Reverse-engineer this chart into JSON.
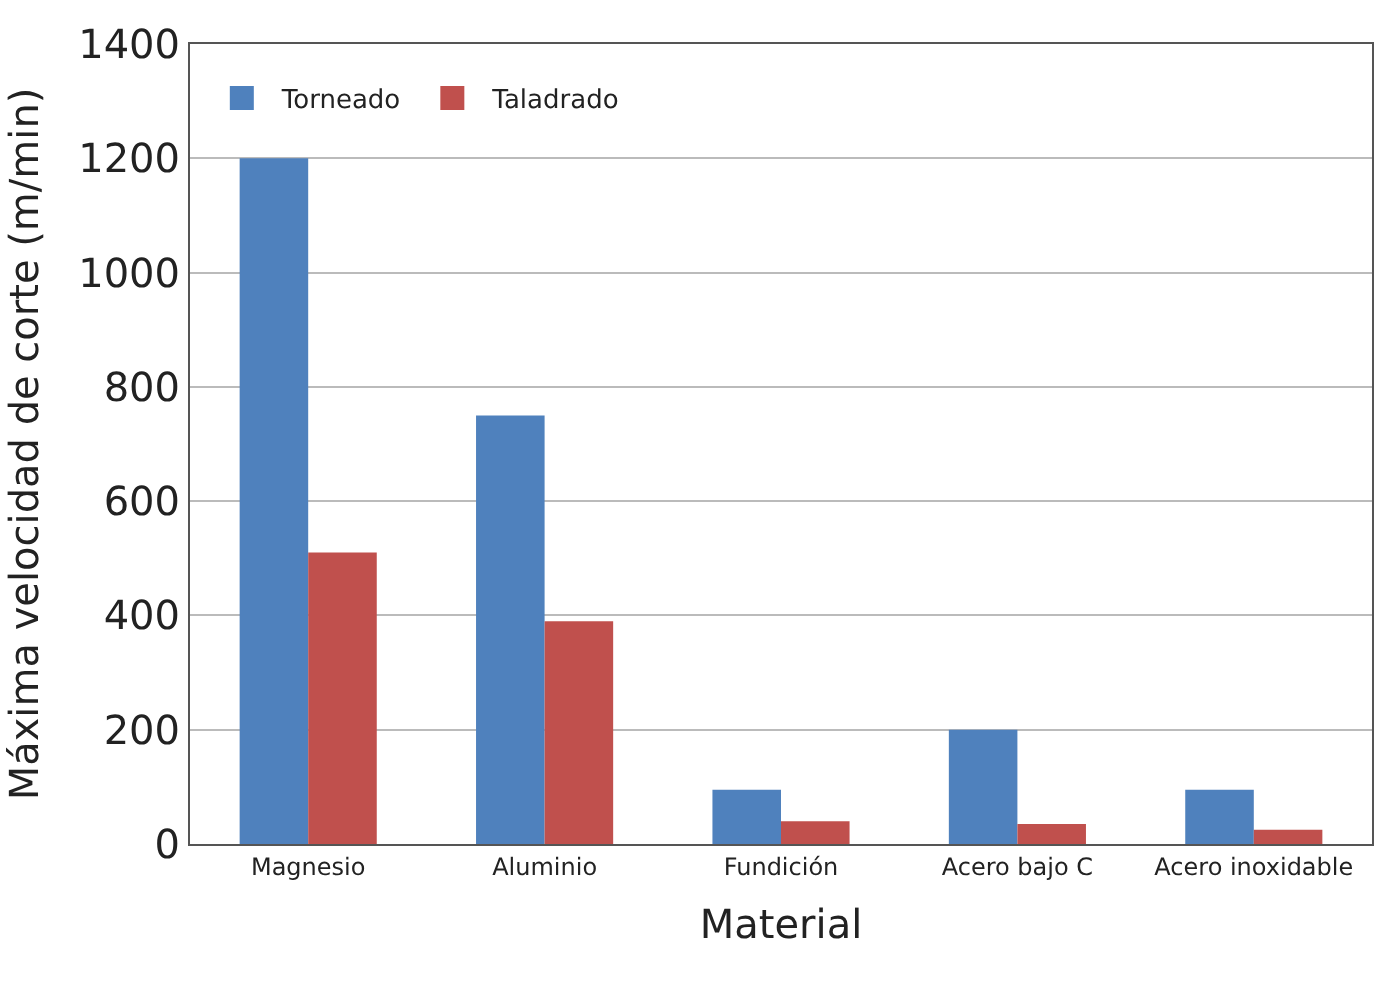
{
  "chart_data": {
    "type": "bar",
    "xlabel": "Material",
    "ylabel": "Máxima velocidad de corte (m/min)",
    "categories": [
      "Magnesio",
      "Aluminio",
      "Fundición",
      "Acero bajo C",
      "Acero inoxidable"
    ],
    "series": [
      {
        "name": "Torneado",
        "color": "#4f81bd",
        "values": [
          1200,
          750,
          95,
          200,
          95
        ]
      },
      {
        "name": "Taladrado",
        "color": "#c0504d",
        "values": [
          510,
          390,
          40,
          35,
          25
        ]
      }
    ],
    "ylim": [
      0,
      1400
    ],
    "yticks": [
      0,
      200,
      400,
      600,
      800,
      1000,
      1200,
      1400
    ],
    "grid": "y",
    "legend": "top left"
  }
}
